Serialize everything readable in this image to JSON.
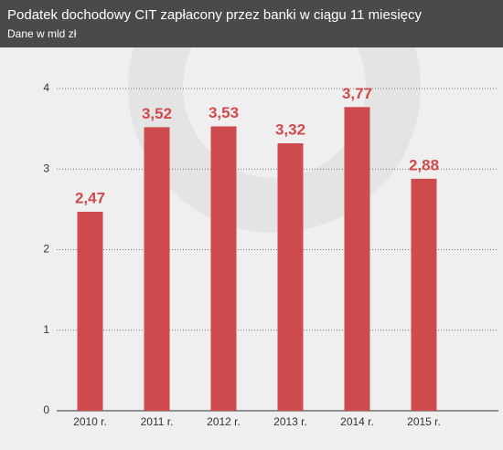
{
  "chart_data": {
    "type": "bar",
    "title": "Podatek dochodowy CIT zapłacony przez banki w ciągu 11 miesięcy",
    "subtitle": "Dane w mld zł",
    "categories": [
      "2010 r.",
      "2011 r.",
      "2012 r.",
      "2013 r.",
      "2014 r.",
      "2015 r."
    ],
    "values": [
      2.47,
      3.52,
      3.53,
      3.32,
      3.77,
      2.88
    ],
    "value_labels": [
      "2,47",
      "3,52",
      "3,53",
      "3,32",
      "3,77",
      "2,88"
    ],
    "color": "#cf4a4c",
    "ylim": [
      0,
      4
    ],
    "yticks": [
      0,
      1,
      2,
      3,
      4
    ],
    "grid": true
  }
}
